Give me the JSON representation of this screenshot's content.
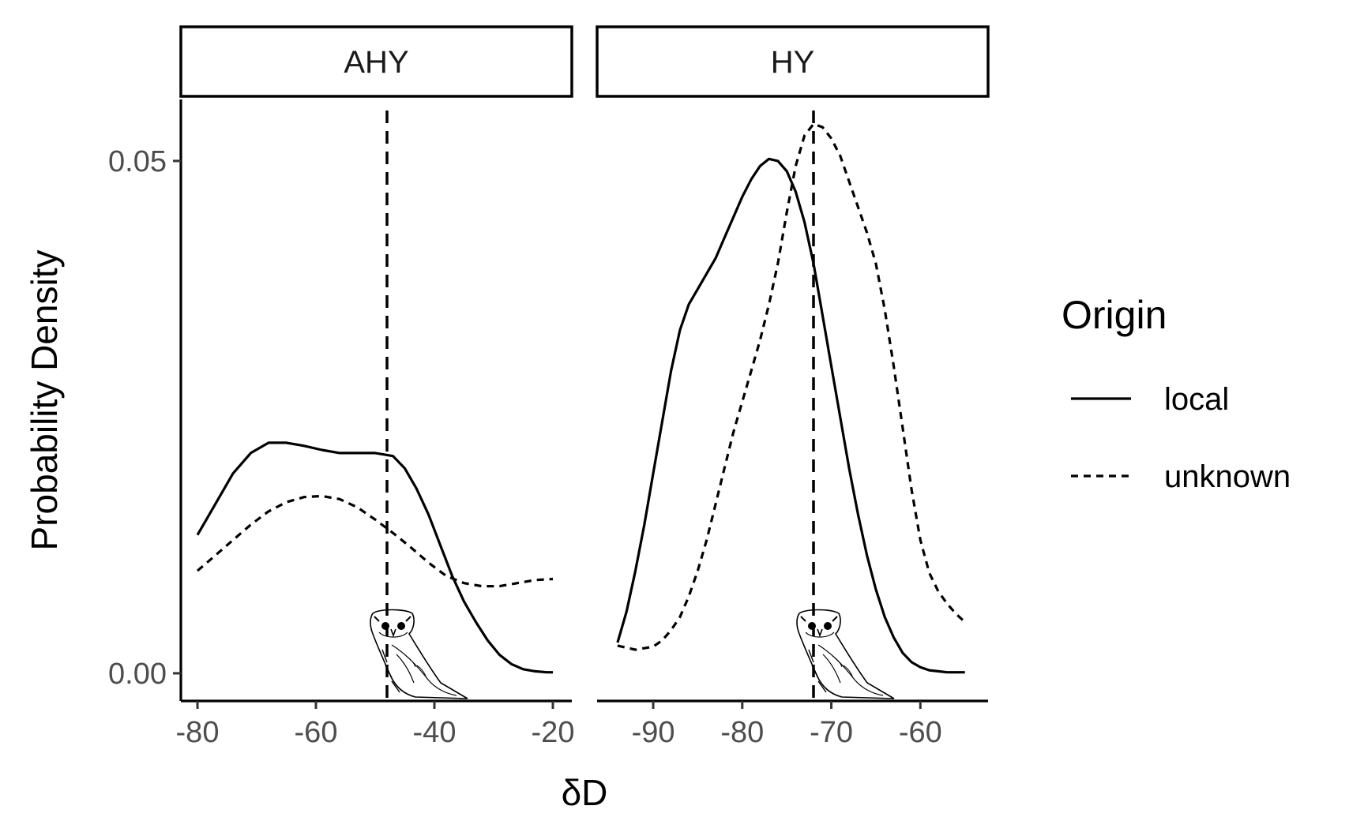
{
  "chart_data": {
    "type": "line",
    "xlabel": "δD",
    "ylabel": "Probability Density",
    "legend": {
      "title": "Origin",
      "position": "right",
      "entries": [
        {
          "name": "local",
          "linetype": "solid"
        },
        {
          "name": "unknown",
          "linetype": "dashed"
        }
      ]
    },
    "y_ticks": [
      "0.00",
      "0.05"
    ],
    "ylim": [
      -0.0027,
      0.056
    ],
    "grid": false,
    "panels": [
      {
        "label": "AHY",
        "xlim": [
          -82.8,
          -16.8
        ],
        "x_ticks": [
          "-80",
          "-60",
          "-40",
          "-20"
        ],
        "vline": -48,
        "series": [
          {
            "name": "local",
            "x": [
              -80,
              -77,
              -74,
              -71,
              -68,
              -65,
              -62,
              -59,
              -56,
              -53,
              -50,
              -47,
              -45,
              -43,
              -41,
              -39,
              -37,
              -35,
              -33,
              -31,
              -29,
              -27,
              -25,
              -23,
              -21,
              -20
            ],
            "y": [
              0.0135,
              0.0165,
              0.0195,
              0.0215,
              0.0225,
              0.0225,
              0.0222,
              0.0218,
              0.0215,
              0.0215,
              0.0215,
              0.0212,
              0.02,
              0.018,
              0.0155,
              0.0125,
              0.0095,
              0.007,
              0.005,
              0.0032,
              0.0018,
              0.0009,
              0.0004,
              0.0002,
              0.0001,
              0.0001
            ]
          },
          {
            "name": "unknown",
            "x": [
              -80,
              -77,
              -74,
              -71,
              -68,
              -65,
              -62,
              -59,
              -56,
              -53,
              -50,
              -47,
              -44,
              -41,
              -38,
              -35,
              -32,
              -29,
              -26,
              -23,
              -20
            ],
            "y": [
              0.01,
              0.0115,
              0.013,
              0.0145,
              0.0158,
              0.0167,
              0.0172,
              0.0173,
              0.017,
              0.0162,
              0.015,
              0.0137,
              0.0123,
              0.0108,
              0.0095,
              0.0088,
              0.0085,
              0.0085,
              0.0088,
              0.0091,
              0.0092
            ]
          }
        ]
      },
      {
        "label": "HY",
        "xlim": [
          -96.3,
          -52.4
        ],
        "x_ticks": [
          "-90",
          "-80",
          "-70",
          "-60"
        ],
        "vline": -72,
        "series": [
          {
            "name": "local",
            "x": [
              -94,
              -93,
              -92,
              -91,
              -90,
              -89,
              -88,
              -87,
              -86,
              -85,
              -84,
              -83,
              -82,
              -81,
              -80,
              -79,
              -78,
              -77,
              -76,
              -75,
              -74,
              -73,
              -72,
              -71,
              -70,
              -69,
              -68,
              -67,
              -66,
              -65,
              -64,
              -63,
              -62,
              -61,
              -60,
              -59,
              -58,
              -57,
              -56,
              -55
            ],
            "y": [
              0.003,
              0.006,
              0.01,
              0.0145,
              0.0195,
              0.0245,
              0.0295,
              0.0335,
              0.036,
              0.0375,
              0.039,
              0.0405,
              0.0425,
              0.0445,
              0.0465,
              0.0482,
              0.0495,
              0.0502,
              0.05,
              0.049,
              0.047,
              0.044,
              0.04,
              0.035,
              0.03,
              0.025,
              0.02,
              0.0155,
              0.0115,
              0.0082,
              0.0055,
              0.0035,
              0.002,
              0.0011,
              0.0006,
              0.0003,
              0.0002,
              0.0001,
              0.0001,
              0.0001
            ]
          },
          {
            "name": "unknown",
            "x": [
              -94,
              -92,
              -90,
              -89,
              -88,
              -87,
              -86,
              -85,
              -84,
              -83,
              -82,
              -81,
              -80,
              -79,
              -78,
              -77,
              -76,
              -75,
              -74,
              -73,
              -72,
              -71,
              -70,
              -69,
              -68,
              -67,
              -66,
              -65,
              -64,
              -63,
              -62,
              -61,
              -60,
              -59,
              -58,
              -57,
              -56,
              -55
            ],
            "y": [
              0.0027,
              0.0023,
              0.0026,
              0.0032,
              0.0042,
              0.0055,
              0.0075,
              0.01,
              0.013,
              0.0165,
              0.02,
              0.0235,
              0.0265,
              0.0295,
              0.0325,
              0.036,
              0.04,
              0.045,
              0.0495,
              0.0525,
              0.0536,
              0.0533,
              0.0522,
              0.0505,
              0.048,
              0.0455,
              0.043,
              0.04,
              0.0355,
              0.03,
              0.024,
              0.018,
              0.013,
              0.0098,
              0.008,
              0.0068,
              0.0058,
              0.005
            ]
          }
        ]
      }
    ]
  },
  "icons": [
    "owl-icon"
  ]
}
